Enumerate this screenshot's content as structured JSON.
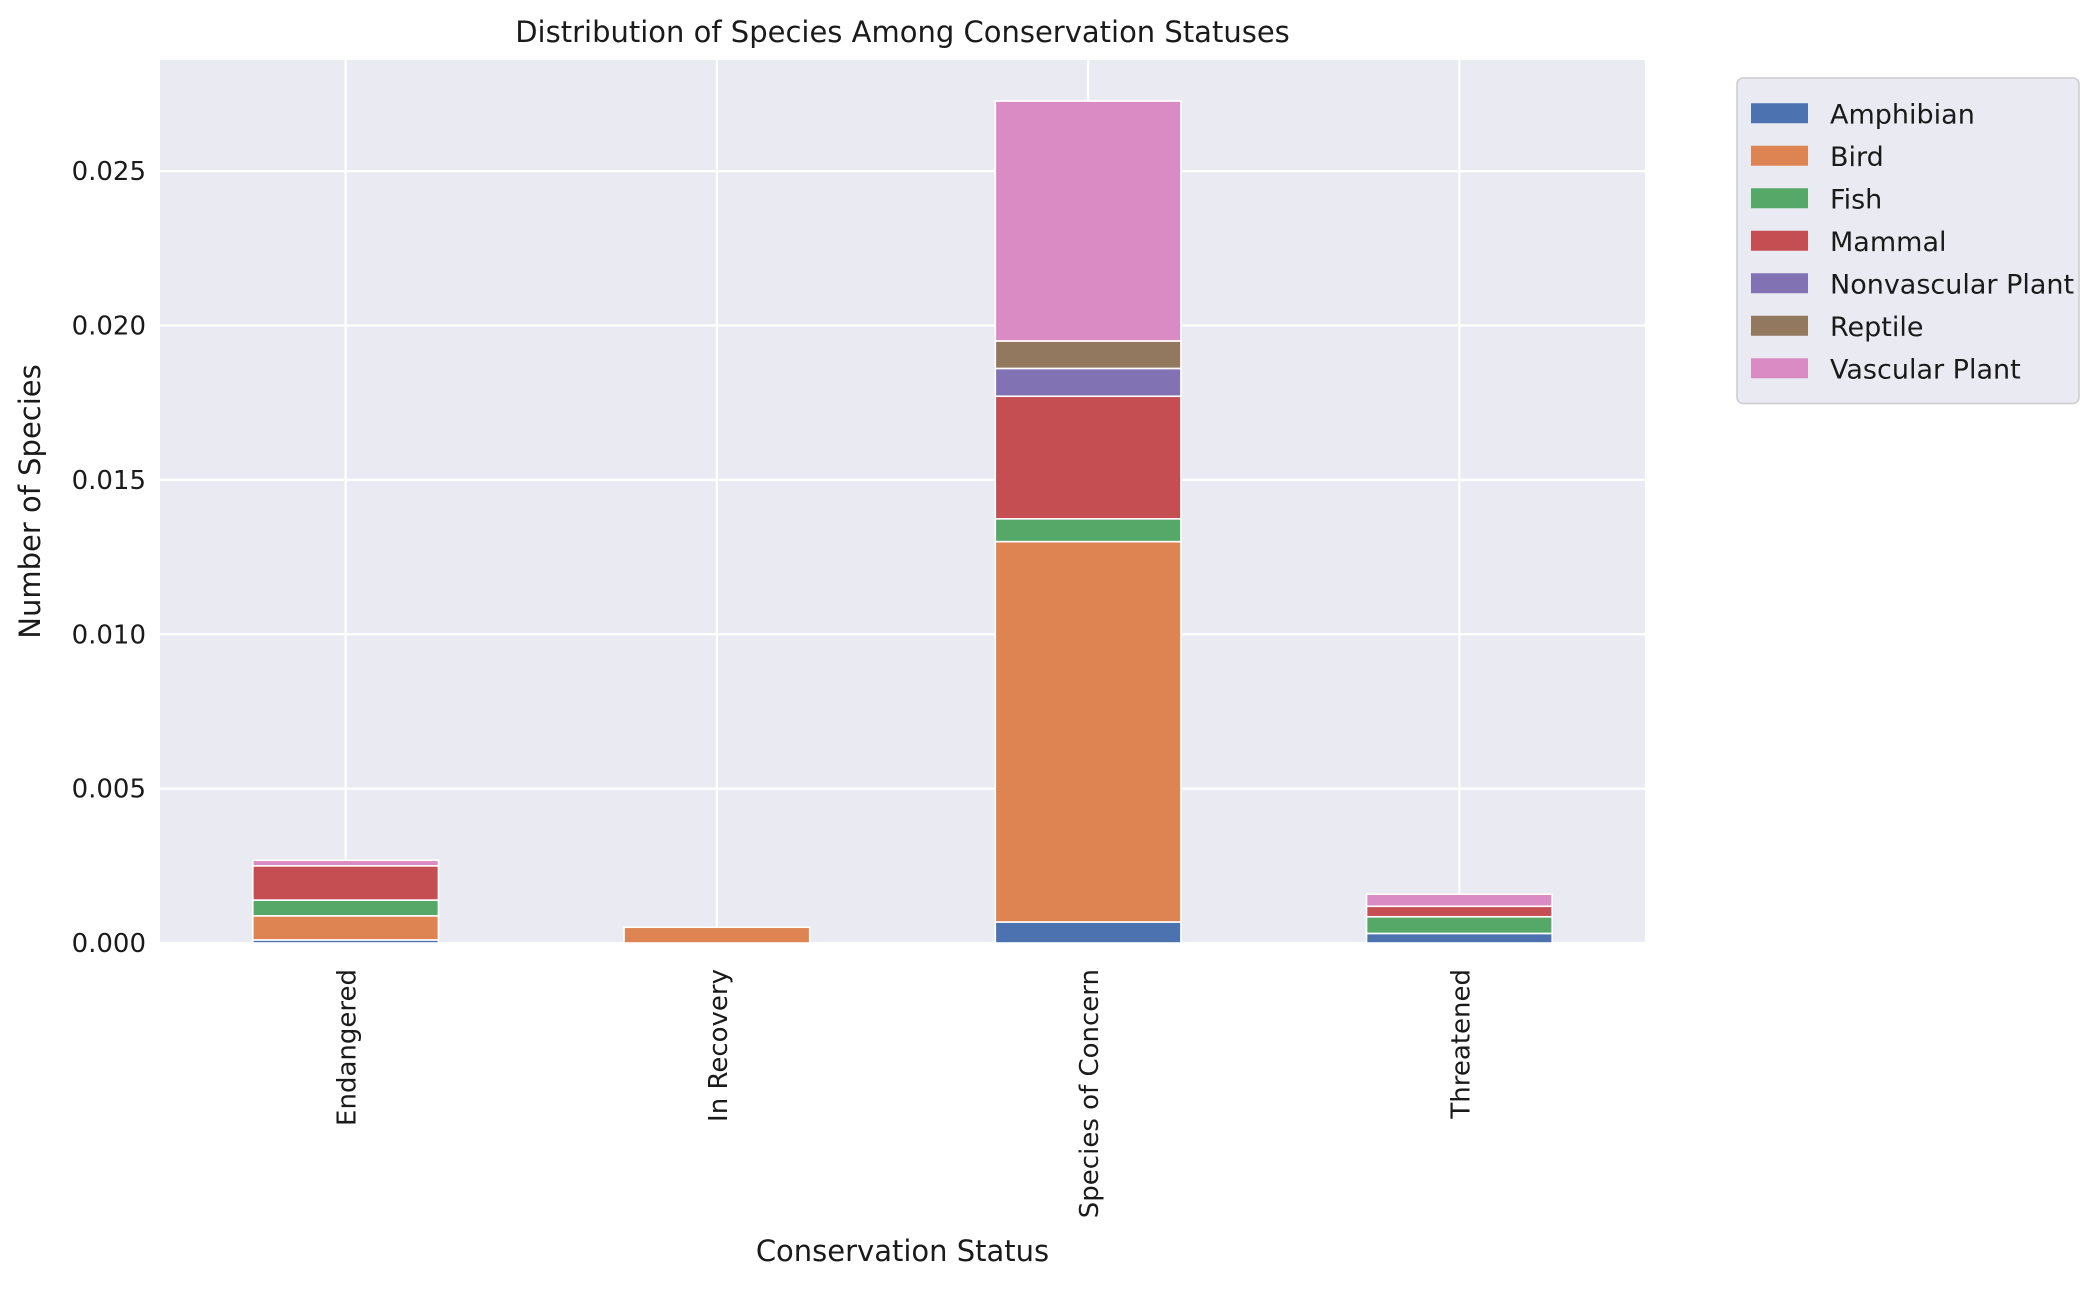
{
  "chart_data": {
    "type": "bar",
    "stacked": true,
    "title": "Distribution of Species Among Conservation Statuses",
    "xlabel": "Conservation Status",
    "ylabel": "Number of Species",
    "categories": [
      "Endangered",
      "In Recovery",
      "Species of Concern",
      "Threatened"
    ],
    "ylim": [
      0,
      0.0286
    ],
    "yticks": [
      "0.000",
      "0.005",
      "0.010",
      "0.015",
      "0.020",
      "0.025"
    ],
    "grid": true,
    "legend_position": "outside top-right",
    "series": [
      {
        "name": "Amphibian",
        "color": "#4c72b0",
        "values": [
          0.0001,
          0.0,
          0.00068,
          0.00031
        ]
      },
      {
        "name": "Bird",
        "color": "#dd8452",
        "values": [
          0.00078,
          0.00051,
          0.01232,
          0.0
        ]
      },
      {
        "name": "Fish",
        "color": "#55a868",
        "values": [
          0.00051,
          0.0,
          0.00074,
          0.00054
        ]
      },
      {
        "name": "Mammal",
        "color": "#c44e52",
        "values": [
          0.00111,
          0.0,
          0.00397,
          0.00034
        ]
      },
      {
        "name": "Nonvascular Plant",
        "color": "#8172b3",
        "values": [
          0.0,
          0.0,
          0.0009,
          0.0
        ]
      },
      {
        "name": "Reptile",
        "color": "#937860",
        "values": [
          0.0,
          0.0,
          0.00089,
          0.0
        ]
      },
      {
        "name": "Vascular Plant",
        "color": "#da8bc3",
        "values": [
          0.00018,
          0.0,
          0.00777,
          0.00039
        ]
      }
    ]
  },
  "colors": {
    "plot_background": "#eaeaf2",
    "grid": "#ffffff",
    "legend_border": "#cccccc"
  }
}
